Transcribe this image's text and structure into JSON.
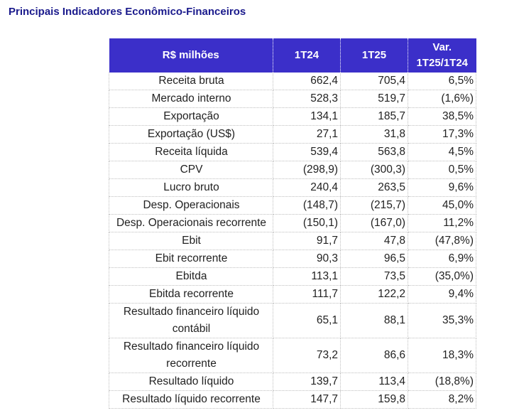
{
  "title": "Principais Indicadores Econômico-Financeiros",
  "table": {
    "headers": [
      "R$ milhões",
      "1T24",
      "1T25",
      "Var.\n1T25/1T24"
    ],
    "rows": [
      {
        "label": "Receita bruta",
        "v1": "662,4",
        "v2": "705,4",
        "var": "6,5%"
      },
      {
        "label": "Mercado interno",
        "v1": "528,3",
        "v2": "519,7",
        "var": "(1,6%)"
      },
      {
        "label": "Exportação",
        "v1": "134,1",
        "v2": "185,7",
        "var": "38,5%"
      },
      {
        "label": "Exportação (US$)",
        "v1": "27,1",
        "v2": "31,8",
        "var": "17,3%"
      },
      {
        "label": "Receita líquida",
        "v1": "539,4",
        "v2": "563,8",
        "var": "4,5%"
      },
      {
        "label": "CPV",
        "v1": "(298,9)",
        "v2": "(300,3)",
        "var": "0,5%"
      },
      {
        "label": "Lucro bruto",
        "v1": "240,4",
        "v2": "263,5",
        "var": "9,6%"
      },
      {
        "label": "Desp. Operacionais",
        "v1": "(148,7)",
        "v2": "(215,7)",
        "var": "45,0%"
      },
      {
        "label": "Desp. Operacionais recorrente",
        "v1": "(150,1)",
        "v2": "(167,0)",
        "var": "11,2%"
      },
      {
        "label": "Ebit",
        "v1": "91,7",
        "v2": "47,8",
        "var": "(47,8%)"
      },
      {
        "label": "Ebit recorrente",
        "v1": "90,3",
        "v2": "96,5",
        "var": "6,9%"
      },
      {
        "label": "Ebitda",
        "v1": "113,1",
        "v2": "73,5",
        "var": "(35,0%)"
      },
      {
        "label": "Ebitda recorrente",
        "v1": "111,7",
        "v2": "122,2",
        "var": "9,4%"
      },
      {
        "label": "Resultado financeiro líquido contábil",
        "v1": "65,1",
        "v2": "88,1",
        "var": "35,3%"
      },
      {
        "label": "Resultado financeiro líquido recorrente",
        "v1": "73,2",
        "v2": "86,6",
        "var": "18,3%"
      },
      {
        "label": "Resultado líquido",
        "v1": "139,7",
        "v2": "113,4",
        "var": "(18,8%)"
      },
      {
        "label": "Resultado líquido recorrente",
        "v1": "147,7",
        "v2": "159,8",
        "var": "8,2%"
      }
    ]
  },
  "colors": {
    "title": "#1a1a8c",
    "header_bg": "#3b2fc9",
    "header_text": "#ffffff"
  }
}
